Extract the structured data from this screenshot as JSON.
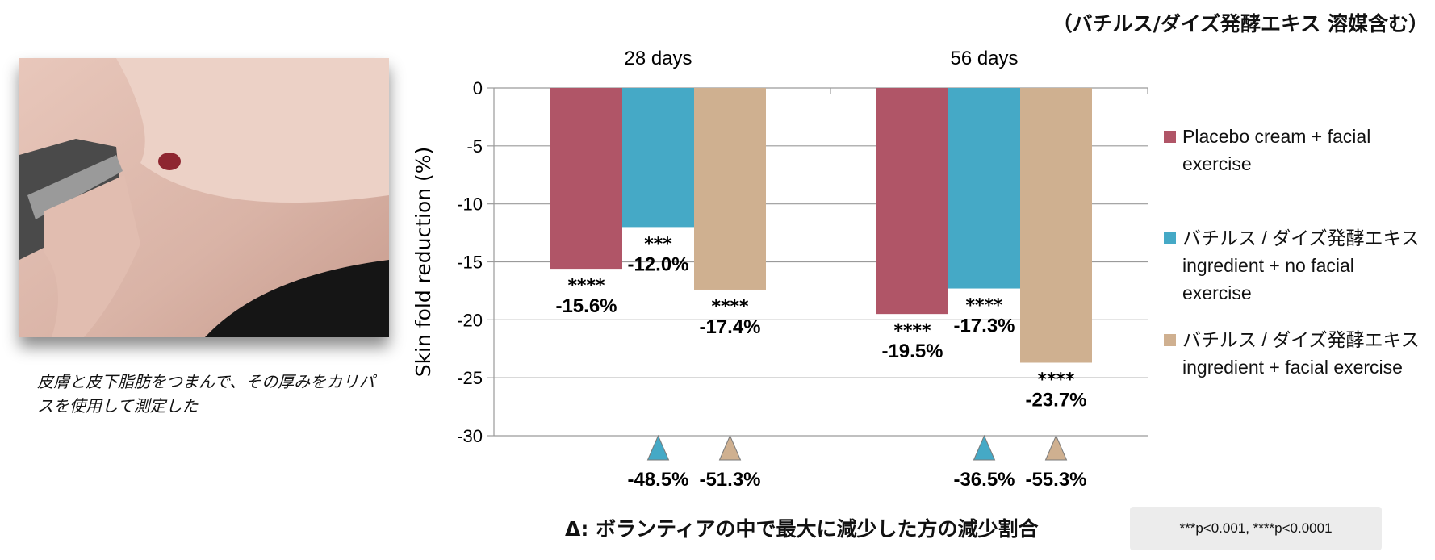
{
  "top_note": "（バチルス/ダイズ発酵エキス 溶媒含む）",
  "photo": {
    "caption": "皮膚と皮下脂肪をつまんで、その厚みをカリパスを使用して測定した"
  },
  "footnote": "Δ: ボランティアの中で最大に減少した方の減少割合",
  "significance": "***p<0.001, ****p<0.0001",
  "colors": {
    "placebo": "#b05567",
    "no_exercise": "#45a9c6",
    "exercise": "#cfb090",
    "grid": "#9a9a9a"
  },
  "chart_data": {
    "type": "bar",
    "title": "",
    "xlabel": "",
    "ylabel": "Skin fold reduction (%)",
    "ylim": [
      -30,
      0
    ],
    "yticks": [
      "0",
      "-5",
      "-10",
      "-15",
      "-20",
      "-25",
      "-30"
    ],
    "categories": [
      "28 days",
      "56 days"
    ],
    "grid": true,
    "legend_position": "right",
    "series": [
      {
        "name": "Placebo cream + facial exercise",
        "values": [
          -15.6,
          -19.5
        ],
        "labels": [
          "-15.6%",
          "-19.5%"
        ],
        "stars": [
          "****",
          "****"
        ]
      },
      {
        "name": "バチルス / ダイズ発酵エキス ingredient + no facial exercise",
        "values": [
          -12.0,
          -17.3
        ],
        "labels": [
          "-12.0%",
          "-17.3%"
        ],
        "stars": [
          "***",
          "****"
        ]
      },
      {
        "name": "バチルス / ダイズ発酵エキス ingredient + facial exercise",
        "values": [
          -17.4,
          -23.7
        ],
        "labels": [
          "-17.4%",
          "-23.7%"
        ],
        "stars": [
          "****",
          "****"
        ]
      }
    ],
    "max_reduction": [
      {
        "category": "28 days",
        "series": 1,
        "label": "-48.5%"
      },
      {
        "category": "28 days",
        "series": 2,
        "label": "-51.3%"
      },
      {
        "category": "56 days",
        "series": 1,
        "label": "-36.5%"
      },
      {
        "category": "56 days",
        "series": 2,
        "label": "-55.3%"
      }
    ]
  },
  "legend": [
    {
      "lines": [
        "Placebo cream + facial",
        "exercise"
      ]
    },
    {
      "lines": [
        "バチルス / ダイズ発酵エキス",
        "ingredient + no facial",
        "exercise"
      ]
    },
    {
      "lines": [
        "バチルス / ダイズ発酵エキス",
        "ingredient + facial exercise"
      ]
    }
  ]
}
